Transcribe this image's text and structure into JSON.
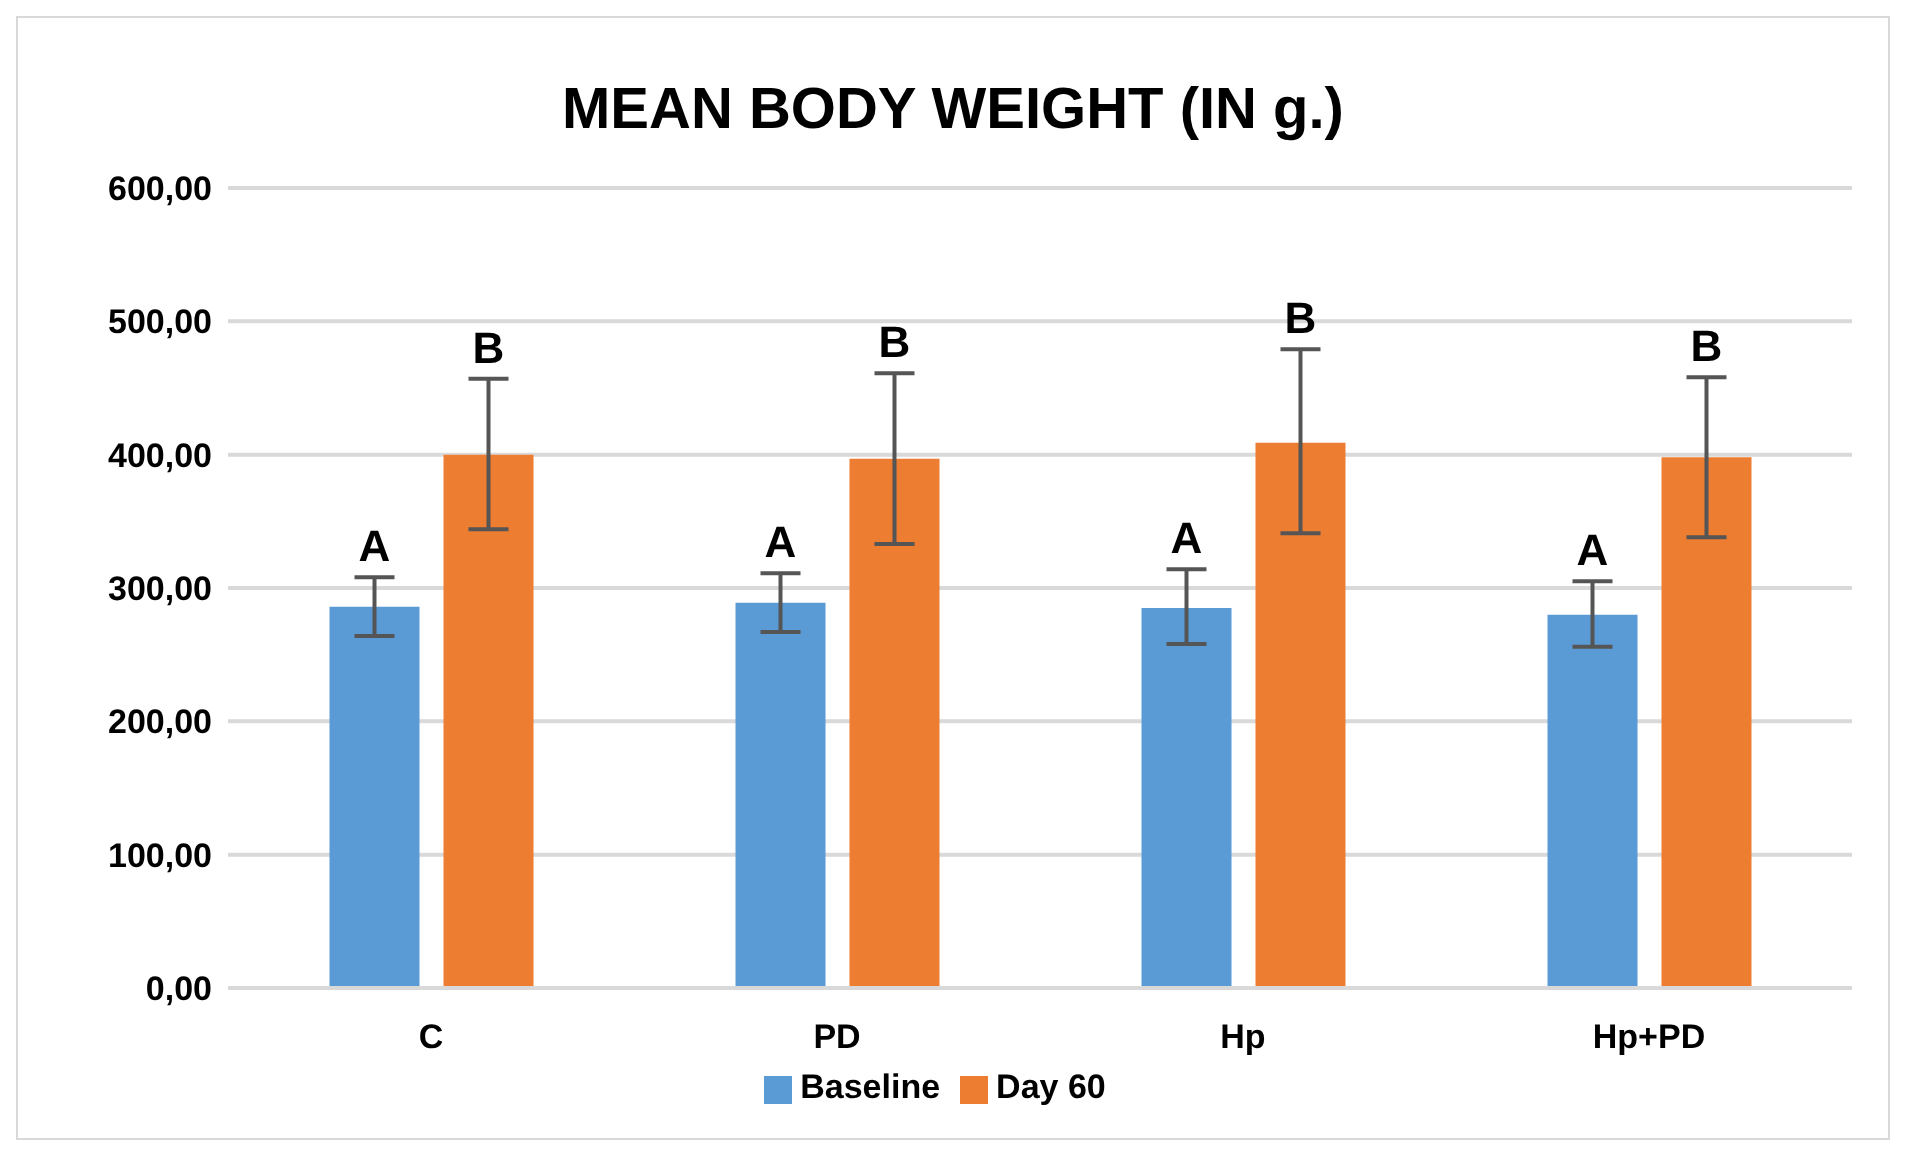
{
  "chart_data": {
    "type": "bar",
    "title": "MEAN BODY WEIGHT (IN g.)",
    "categories": [
      "C",
      "PD",
      "Hp",
      "Hp+PD"
    ],
    "series": [
      {
        "name": "Baseline",
        "color": "#5b9bd5",
        "values": [
          286,
          289,
          285,
          280
        ],
        "errors": [
          [
            264,
            308
          ],
          [
            267,
            311
          ],
          [
            258,
            314
          ],
          [
            256,
            305
          ]
        ],
        "value_labels": [
          "A",
          "A",
          "A",
          "A"
        ]
      },
      {
        "name": "Day 60",
        "color": "#ed7d31",
        "values": [
          400,
          397,
          409,
          398
        ],
        "errors": [
          [
            344,
            457
          ],
          [
            333,
            461
          ],
          [
            341,
            479
          ],
          [
            338,
            458
          ]
        ],
        "value_labels": [
          "B",
          "B",
          "B",
          "B"
        ]
      }
    ],
    "ylim": [
      0,
      600
    ],
    "yticks": [
      {
        "value": 0,
        "label": "0,00"
      },
      {
        "value": 100,
        "label": "100,00"
      },
      {
        "value": 200,
        "label": "200,00"
      },
      {
        "value": 300,
        "label": "300,00"
      },
      {
        "value": 400,
        "label": "400,00"
      },
      {
        "value": 500,
        "label": "500,00"
      },
      {
        "value": 600,
        "label": "600,00"
      }
    ],
    "grid": "y",
    "legend": "bottom"
  }
}
